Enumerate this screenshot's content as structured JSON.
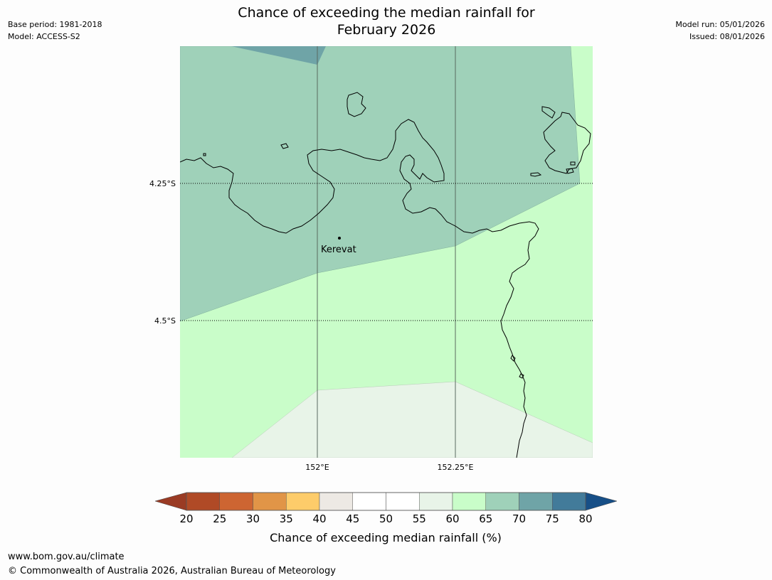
{
  "header": {
    "base_period": "Base period: 1981-2018",
    "model": "Model: ACCESS-S2",
    "model_run": "Model run: 05/01/2026",
    "issued": "Issued: 08/01/2026",
    "title_line1": "Chance of exceeding the median rainfall for",
    "title_line2": "February 2026"
  },
  "map": {
    "lat_labels": [
      "4.25°S",
      "4.5°S"
    ],
    "lon_labels": [
      "152°E",
      "152.25°E"
    ],
    "places": [
      {
        "name": "Kerevat"
      }
    ]
  },
  "colorbar": {
    "label": "Chance of exceeding median rainfall (%)",
    "ticks": [
      "20",
      "25",
      "30",
      "35",
      "40",
      "45",
      "50",
      "55",
      "60",
      "65",
      "70",
      "75",
      "80"
    ],
    "colors": [
      "#b04a26",
      "#cd6532",
      "#e19547",
      "#fdcc6a",
      "#ede9e4",
      "#ffffff",
      "#ffffff",
      "#e8f4e8",
      "#c9fdc9",
      "#9fd1b9",
      "#6fa4a7",
      "#427b9a"
    ],
    "under_color": "#9a3b24",
    "over_color": "#174f87"
  },
  "footer": {
    "url": "www.bom.gov.au/climate",
    "copyright": "© Commonwealth of Australia 2026, Australian Bureau of Meteorology"
  }
}
